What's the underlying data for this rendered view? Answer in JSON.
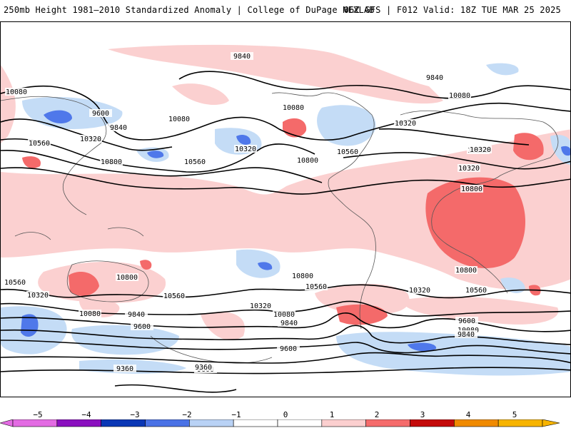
{
  "header": {
    "left": "250mb Height 1981–2010 Standardized Anomaly | College of DuPage NEXLAB",
    "right": "06Z GFS | F012 Valid: 18Z TUE MAR 25 2025"
  },
  "contour_labels": [
    "9840",
    "9840",
    "10080",
    "10080",
    "10080",
    "9600",
    "9840",
    "10320",
    "10560",
    "10800",
    "10560",
    "10320",
    "10080",
    "10800",
    "10560",
    "10320",
    "10560",
    "10320",
    "10800",
    "10320",
    "10800",
    "10800",
    "10560",
    "10320",
    "10560",
    "10560",
    "10320",
    "10080",
    "9840",
    "9600",
    "10800",
    "10560",
    "10320",
    "10080",
    "9840",
    "9600",
    "10080",
    "9840",
    "9600",
    "9600",
    "9360",
    "9360"
  ],
  "colorbar": {
    "ticks": [
      "−5",
      "−4",
      "−3",
      "−2",
      "−1",
      "0",
      "1",
      "2",
      "3",
      "4",
      "5"
    ],
    "colors": {
      "neg5": "#e36be3",
      "neg4": "#8a0fbf",
      "neg3": "#0a37b5",
      "neg2": "#4a72e6",
      "neg1": "#b9d2f5",
      "zero": "#ffffff",
      "pos1": "#fbcfcf",
      "pos2": "#f56b6b",
      "pos3": "#c40a0a",
      "pos4": "#f08a00",
      "pos5": "#f7b400"
    }
  },
  "colors": {
    "anom_neg_light": "#c4dcf6",
    "anom_neg_mid": "#4f78ea",
    "anom_pos_light": "#fbd0d0",
    "anom_pos_mid": "#f46a6a",
    "contour": "#000000",
    "coastline": "#555555"
  }
}
